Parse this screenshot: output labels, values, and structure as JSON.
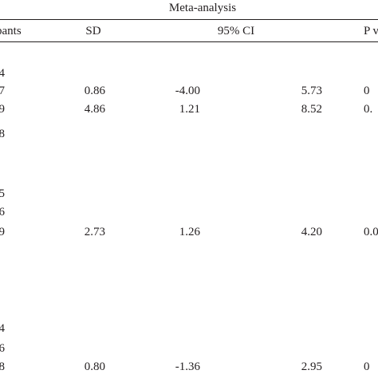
{
  "table": {
    "group_header": "Meta-analysis",
    "columns": {
      "participants": "pants",
      "sd": "SD",
      "ci": "95% CI",
      "p": "P v"
    },
    "rows": [
      {
        "participants": "4",
        "sd": "",
        "ci_low": "",
        "ci_high": "",
        "p": ""
      },
      {
        "participants": "7",
        "sd": "0.86",
        "ci_low": "-4.00",
        "ci_high": "5.73",
        "p": "0"
      },
      {
        "participants": "9",
        "sd": "4.86",
        "ci_low": "1.21",
        "ci_high": "8.52",
        "p": "0."
      },
      {
        "participants": "8",
        "sd": "",
        "ci_low": "",
        "ci_high": "",
        "p": ""
      },
      {
        "participants": "5",
        "sd": "",
        "ci_low": "",
        "ci_high": "",
        "p": ""
      },
      {
        "participants": "6",
        "sd": "",
        "ci_low": "",
        "ci_high": "",
        "p": ""
      },
      {
        "participants": "9",
        "sd": "2.73",
        "ci_low": "1.26",
        "ci_high": "4.20",
        "p": "0.0"
      },
      {
        "participants": "4",
        "sd": "",
        "ci_low": "",
        "ci_high": "",
        "p": ""
      },
      {
        "participants": "6",
        "sd": "",
        "ci_low": "",
        "ci_high": "",
        "p": ""
      },
      {
        "participants": "8",
        "sd": "0.80",
        "ci_low": "-1.36",
        "ci_high": "2.95",
        "p": "0"
      }
    ]
  }
}
